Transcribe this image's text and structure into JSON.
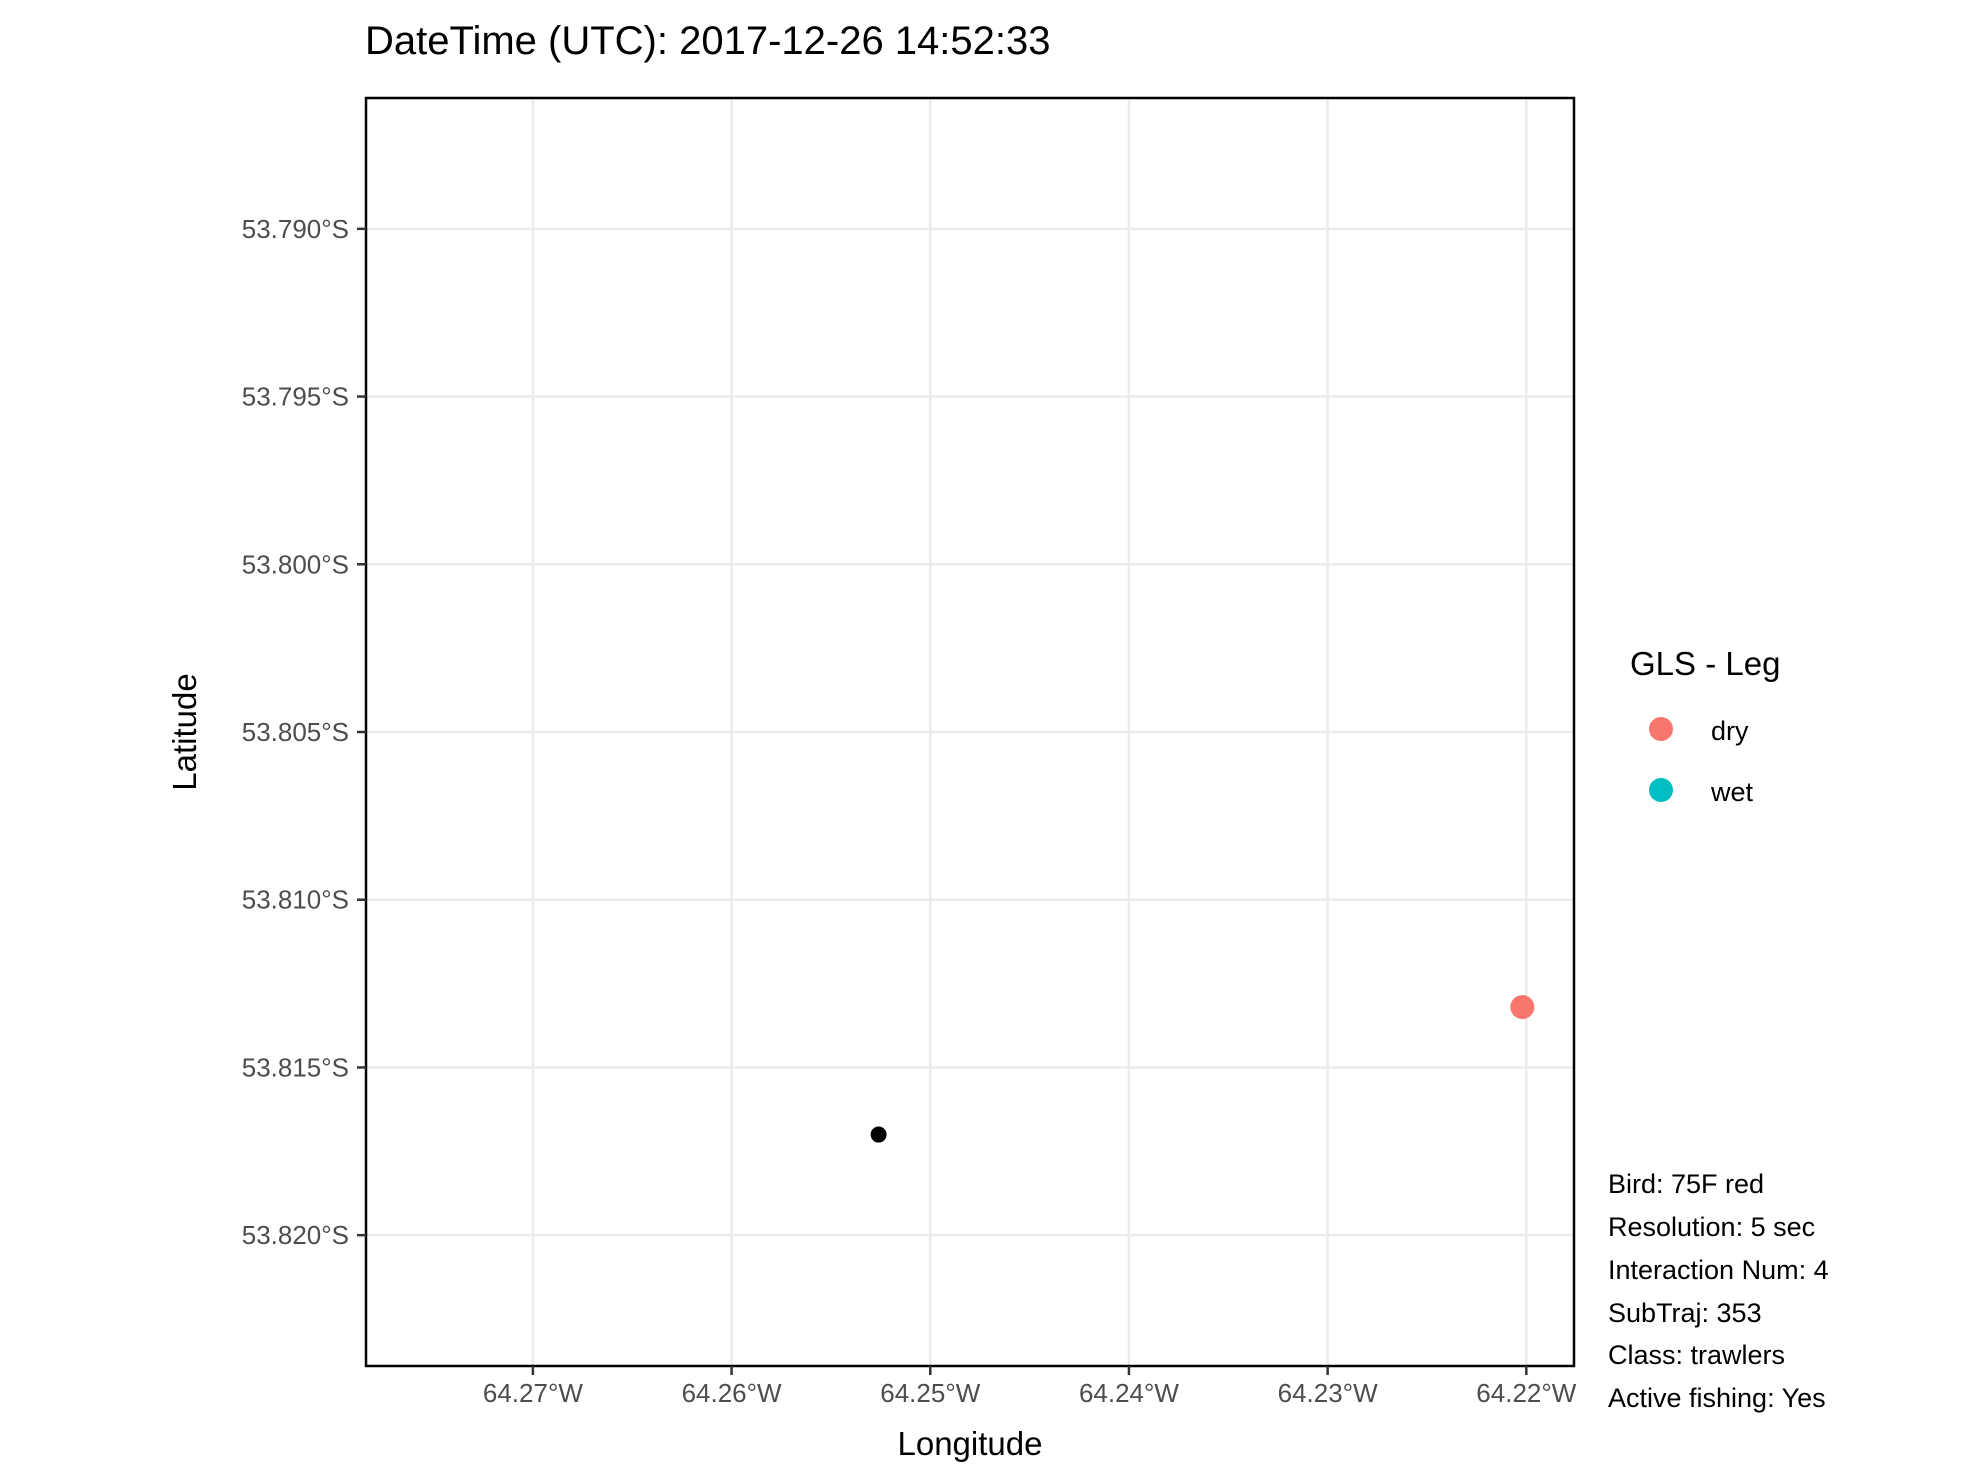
{
  "chart_data": {
    "type": "scatter",
    "title": "DateTime (UTC): 2017-12-26 14:52:33",
    "xlabel": "Longitude",
    "ylabel": "Latitude",
    "xlim": [
      -64.2784,
      -64.2176
    ],
    "ylim": [
      -53.8239,
      -53.7861
    ],
    "x_ticks": [
      {
        "value": -64.27,
        "label": "64.27°W"
      },
      {
        "value": -64.26,
        "label": "64.26°W"
      },
      {
        "value": -64.25,
        "label": "64.25°W"
      },
      {
        "value": -64.24,
        "label": "64.24°W"
      },
      {
        "value": -64.23,
        "label": "64.23°W"
      },
      {
        "value": -64.22,
        "label": "64.22°W"
      }
    ],
    "y_ticks": [
      {
        "value": -53.79,
        "label": "53.790°S"
      },
      {
        "value": -53.795,
        "label": "53.795°S"
      },
      {
        "value": -53.8,
        "label": "53.800°S"
      },
      {
        "value": -53.805,
        "label": "53.805°S"
      },
      {
        "value": -53.81,
        "label": "53.810°S"
      },
      {
        "value": -53.815,
        "label": "53.815°S"
      },
      {
        "value": -53.82,
        "label": "53.820°S"
      }
    ],
    "grid": true,
    "points": [
      {
        "lon": -64.2202,
        "lat": -53.8132,
        "color": "#F8766D"
      },
      {
        "lon": -64.2526,
        "lat": -53.817,
        "color": "#000000"
      }
    ],
    "legend": {
      "title": "GLS - Leg",
      "placement": "right",
      "items": [
        {
          "label": "dry",
          "color": "#F8766D"
        },
        {
          "label": "wet",
          "color": "#00BFC4"
        }
      ]
    }
  },
  "info": {
    "lines": [
      "Bird: 75F red",
      "Resolution: 5 sec",
      "Interaction Num: 4",
      "SubTraj: 353",
      "Class: trawlers",
      "Active fishing: Yes"
    ]
  }
}
